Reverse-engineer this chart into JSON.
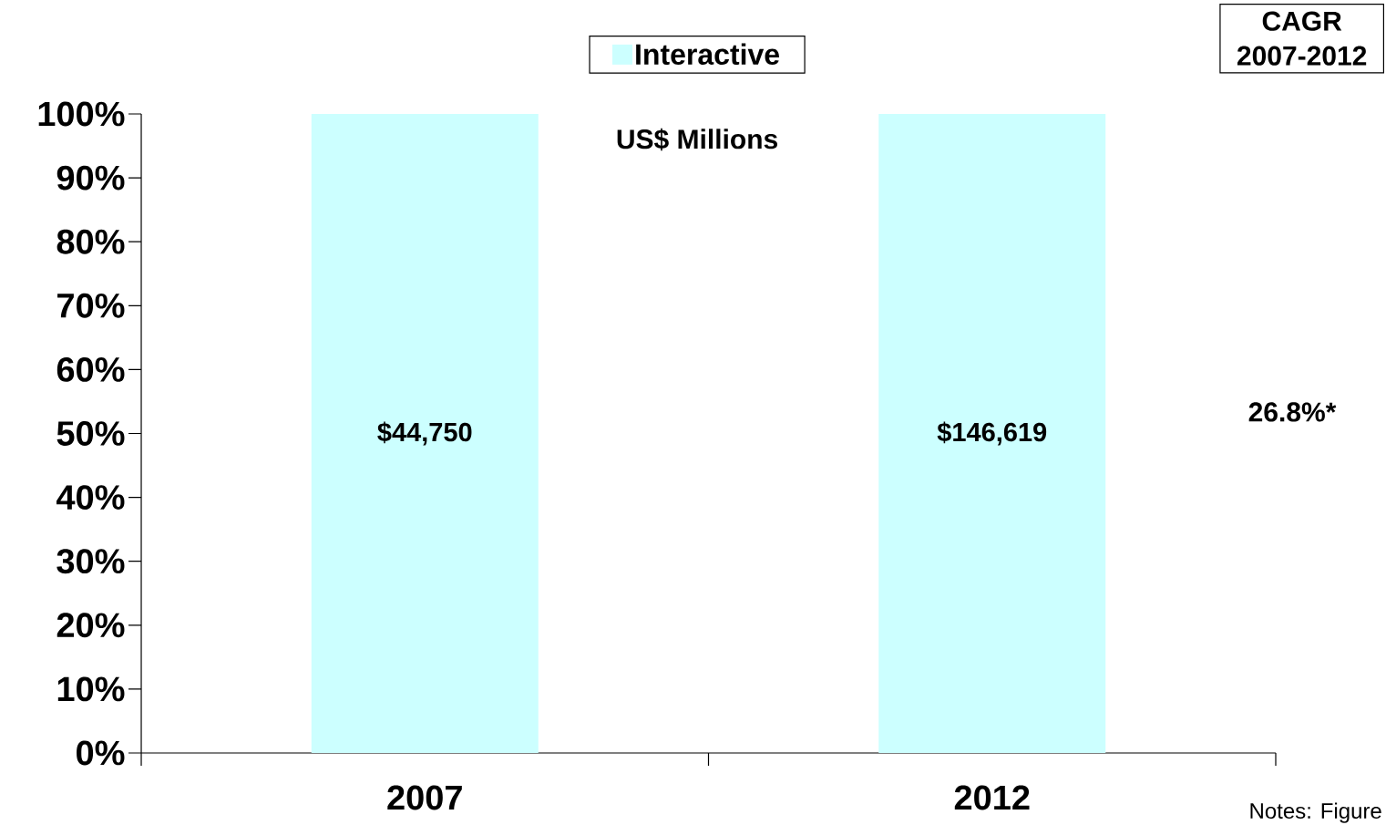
{
  "chart_data": {
    "type": "bar",
    "categories": [
      "2007",
      "2012"
    ],
    "series": [
      {
        "name": "Interactive",
        "color": "#ccffff",
        "values": [
          100,
          100
        ]
      }
    ],
    "ylim": [
      0,
      100
    ],
    "yticks": [
      {
        "value": 0,
        "label": "0%"
      },
      {
        "value": 10,
        "label": "10%"
      },
      {
        "value": 20,
        "label": "20%"
      },
      {
        "value": 30,
        "label": "30%"
      },
      {
        "value": 40,
        "label": "40%"
      },
      {
        "value": 50,
        "label": "50%"
      },
      {
        "value": 60,
        "label": "60%"
      },
      {
        "value": 70,
        "label": "70%"
      },
      {
        "value": 80,
        "label": "80%"
      },
      {
        "value": 90,
        "label": "90%"
      },
      {
        "value": 100,
        "label": "100%"
      }
    ],
    "legend": "top",
    "annotations": [
      "US$ Millions",
      "CAGR",
      "2007-2012",
      "26.8%*",
      "Notes: Figure",
      "$44,750",
      "$146,619"
    ]
  }
}
